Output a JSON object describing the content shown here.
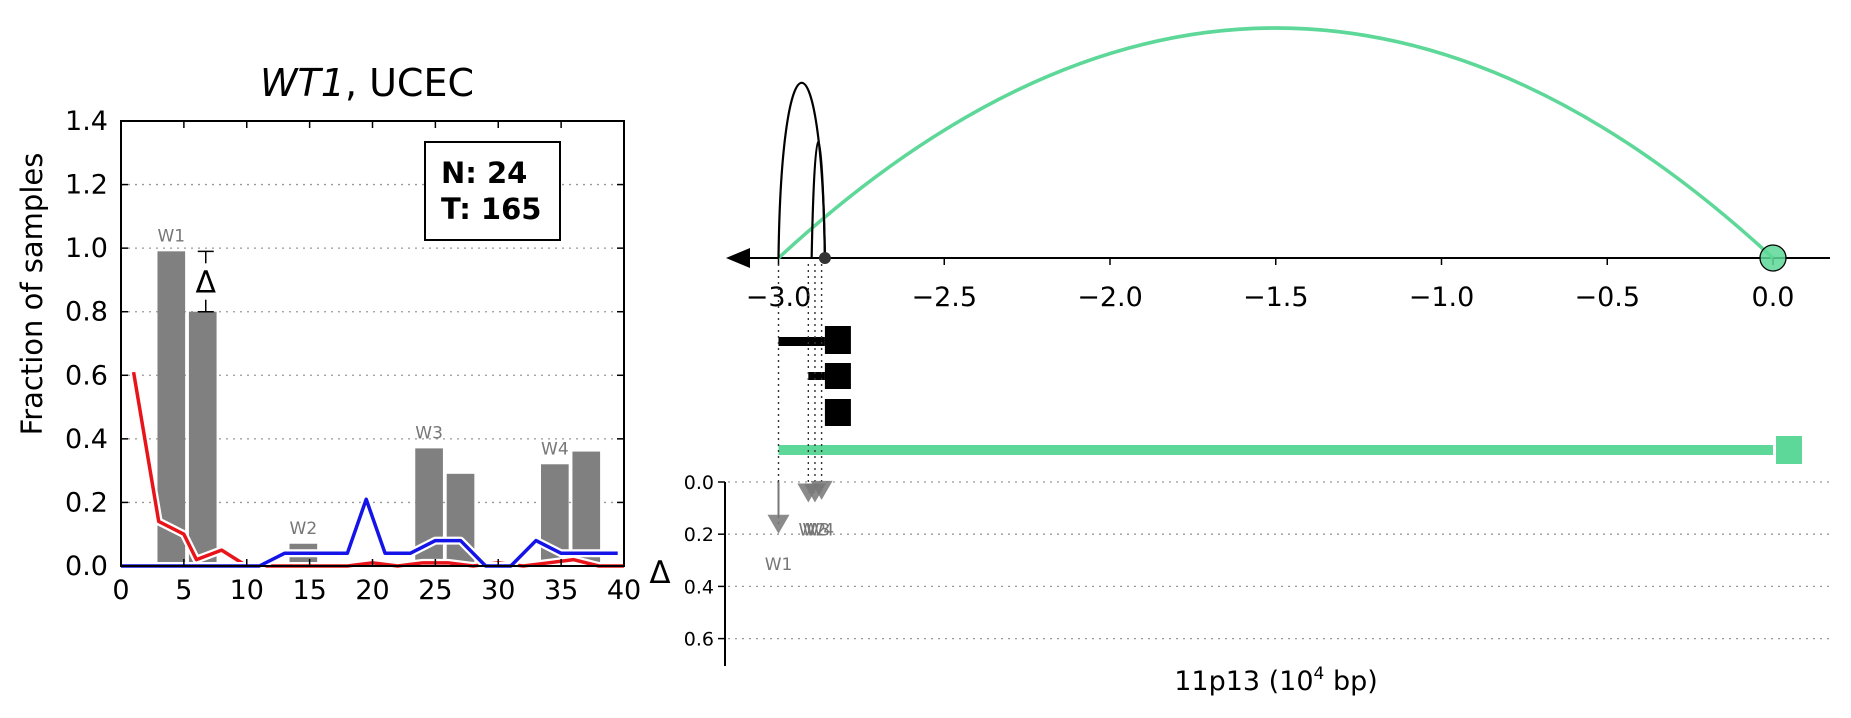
{
  "left_chart": {
    "title_gene": "WT1",
    "title_rest": ", UCEC",
    "ylabel": "Fraction of samples",
    "stats": {
      "n": "N: 24",
      "t": "T: 165"
    },
    "delta_symbol": "Δ",
    "colors": {
      "bars": "#808080",
      "red": "#e8141a",
      "blue": "#1414e8"
    }
  },
  "right_chart": {
    "xlabel_main": "11p13 (10",
    "xlabel_sup": "4",
    "xlabel_end": " bp)",
    "delta_axis_label": "Δ",
    "colors": {
      "green": "#5dd898",
      "arc": "#000000"
    }
  },
  "chart_data": [
    {
      "type": "bar",
      "title": "WT1, UCEC",
      "ylabel": "Fraction of samples",
      "xlim": [
        0,
        40
      ],
      "ylim": [
        0,
        1.4
      ],
      "xticks": [
        "0",
        "5",
        "10",
        "15",
        "20",
        "25",
        "30",
        "35",
        "40"
      ],
      "yticks": [
        "0.0",
        "0.2",
        "0.4",
        "0.6",
        "0.8",
        "1.0",
        "1.2",
        "1.4"
      ],
      "grid": true,
      "legend": "top-right",
      "bars": [
        {
          "x": 4,
          "value": 0.99,
          "label": "W1"
        },
        {
          "x": 6.5,
          "value": 0.8
        },
        {
          "x": 14.5,
          "value": 0.07,
          "label": "W2"
        },
        {
          "x": 24.5,
          "value": 0.37,
          "label": "W3"
        },
        {
          "x": 27,
          "value": 0.29
        },
        {
          "x": 34.5,
          "value": 0.32,
          "label": "W4"
        },
        {
          "x": 37,
          "value": 0.36
        }
      ],
      "delta_annotation": {
        "x": 6.5,
        "from": 0.99,
        "to": 0.8,
        "label": "Δ"
      },
      "series": [
        {
          "color": "#e8141a",
          "x": [
            1,
            3,
            5,
            6,
            8,
            10,
            12,
            14,
            16,
            18,
            20,
            22,
            24,
            26,
            28,
            30,
            32,
            34,
            36,
            38,
            40
          ],
          "values": [
            0.61,
            0.14,
            0.1,
            0.02,
            0.05,
            0.0,
            0.0,
            0.0,
            0.0,
            0.0,
            0.01,
            0.0,
            0.01,
            0.01,
            0.0,
            0.01,
            0.0,
            0.01,
            0.02,
            0.0,
            0.0
          ]
        },
        {
          "color": "#1414e8",
          "x": [
            0,
            11,
            13,
            18,
            19.5,
            21,
            23,
            25,
            27,
            29,
            31,
            33,
            35,
            37,
            39.5
          ],
          "values": [
            0.0,
            0.0,
            0.04,
            0.04,
            0.21,
            0.04,
            0.04,
            0.08,
            0.08,
            0.0,
            0.0,
            0.08,
            0.04,
            0.04,
            0.04
          ]
        }
      ],
      "stats_box": [
        "N: 24",
        "T: 165"
      ]
    },
    {
      "type": "line",
      "xlabel": "11p13 (10^4 bp)",
      "xlim": [
        -3.1,
        0.18
      ],
      "xticks": [
        "−3.0",
        "−2.5",
        "−2.0",
        "−1.5",
        "−1.0",
        "−0.5",
        "0.0"
      ],
      "arcs": [
        {
          "color": "#5dd898",
          "from": -3.0,
          "to": 0.0
        },
        {
          "color": "#000000",
          "from": -3.0,
          "to": -2.86
        },
        {
          "color": "#000000",
          "from": -2.9,
          "to": -2.86
        }
      ],
      "gene_direction": "left",
      "gene_track": {
        "color": "#5dd898",
        "from": -3.0,
        "to": 0.0
      },
      "exon_blocks": [
        -2.86
      ],
      "delta_panel": {
        "ylabel": "Δ",
        "ylim": [
          0.0,
          0.7
        ],
        "yticks": [
          "0.0",
          "0.2",
          "0.4",
          "0.6"
        ],
        "markers": [
          {
            "label": "W1",
            "x": -3.0,
            "value": 0.16
          },
          {
            "label": "W2",
            "x": -2.91,
            "value": 0.04
          },
          {
            "label": "W3",
            "x": -2.89,
            "value": 0.04
          },
          {
            "label": "W4",
            "x": -2.87,
            "value": 0.03
          }
        ]
      }
    }
  ]
}
